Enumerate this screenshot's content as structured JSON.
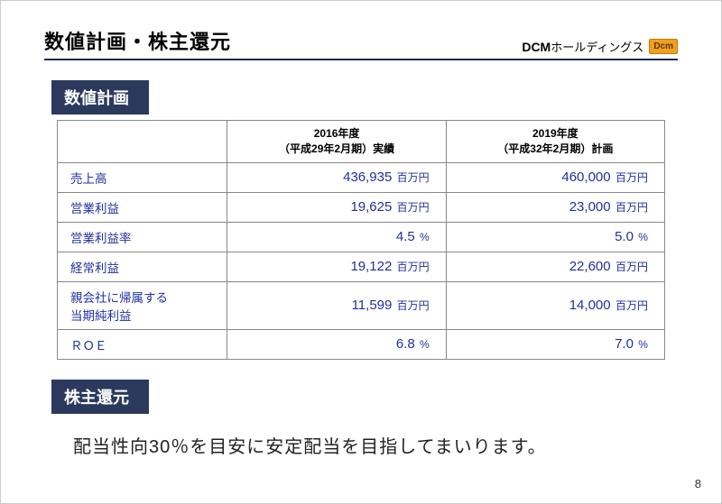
{
  "header": {
    "title": "数値計画・株主還元",
    "brand_bold": "DCM",
    "brand_rest": "ホールディングス",
    "brand_badge": "Dcm"
  },
  "section1": {
    "tab": "数値計画",
    "col1_line1": "2016年度",
    "col1_line2": "（平成29年2月期）実績",
    "col2_line1": "2019年度",
    "col2_line2": "（平成32年2月期）計画",
    "rows": [
      {
        "label": "売上高",
        "v1_num": "436,935",
        "v1_unit": "百万円",
        "v2_num": "460,000",
        "v2_unit": "百万円"
      },
      {
        "label": "営業利益",
        "v1_num": "19,625",
        "v1_unit": "百万円",
        "v2_num": "23,000",
        "v2_unit": "百万円"
      },
      {
        "label": "営業利益率",
        "v1_num": "4.5",
        "v1_unit": "%",
        "v2_num": "5.0",
        "v2_unit": "%"
      },
      {
        "label": "経常利益",
        "v1_num": "19,122",
        "v1_unit": "百万円",
        "v2_num": "22,600",
        "v2_unit": "百万円"
      },
      {
        "label": "親会社に帰属する\n当期純利益",
        "v1_num": "11,599",
        "v1_unit": "百万円",
        "v2_num": "14,000",
        "v2_unit": "百万円"
      },
      {
        "label": "ＲＯＥ",
        "v1_num": "6.8",
        "v1_unit": "%",
        "v2_num": "7.0",
        "v2_unit": "%"
      }
    ]
  },
  "section2": {
    "tab": "株主還元",
    "text": "配当性向30％を目安に安定配当を目指してまいります。"
  },
  "page_number": "8",
  "colors": {
    "tab_bg": "#2b3a5c",
    "value_color": "#2030a0",
    "rule_color": "#1a2a4a"
  }
}
